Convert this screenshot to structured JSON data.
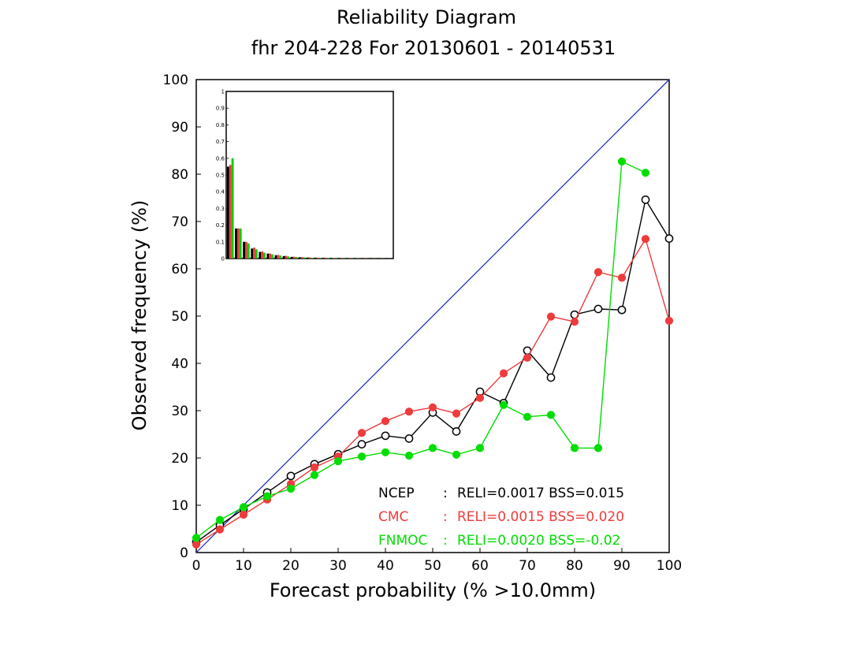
{
  "chart_data": {
    "type": "line",
    "title": "Reliability Diagram",
    "subtitle": "fhr 204-228 For 20130601 - 20140531",
    "xlabel": "Forecast probability (% >10.0mm)",
    "ylabel": "Observed frequency (%)",
    "xlim": [
      0,
      100
    ],
    "ylim": [
      0,
      100
    ],
    "xticks": [
      "0",
      "10",
      "20",
      "30",
      "40",
      "50",
      "60",
      "70",
      "80",
      "90",
      "100"
    ],
    "yticks": [
      "0",
      "10",
      "20",
      "30",
      "40",
      "50",
      "60",
      "70",
      "80",
      "90",
      "100"
    ],
    "grid": false,
    "diagonal_color": "#1f2fb0",
    "x": [
      0,
      5,
      10,
      15,
      20,
      25,
      30,
      35,
      40,
      45,
      50,
      55,
      60,
      65,
      70,
      75,
      80,
      85,
      90,
      95,
      100
    ],
    "series": [
      {
        "name": "NCEP",
        "color": "#000000",
        "marker": "open-circle",
        "values": [
          2.2,
          5.8,
          9.2,
          12.7,
          16.2,
          18.7,
          20.8,
          22.9,
          24.7,
          24.1,
          29.6,
          25.6,
          34.0,
          31.6,
          42.7,
          37.0,
          50.3,
          51.5,
          51.3,
          74.6,
          66.4
        ]
      },
      {
        "name": "CMC",
        "color": "#ee3b3b",
        "marker": "filled-circle",
        "values": [
          1.7,
          4.9,
          8.0,
          11.2,
          14.5,
          18.0,
          20.3,
          25.3,
          27.8,
          29.8,
          30.7,
          29.4,
          32.7,
          37.9,
          41.2,
          49.9,
          48.8,
          59.3,
          58.1,
          66.3,
          49.0
        ]
      },
      {
        "name": "FNMOC",
        "color": "#00dd00",
        "marker": "filled-circle",
        "values": [
          3.1,
          6.9,
          9.6,
          11.9,
          13.5,
          16.4,
          19.3,
          20.3,
          21.2,
          20.5,
          22.1,
          20.7,
          22.1,
          31.2,
          28.7,
          29.1,
          22.1,
          22.1,
          82.7,
          80.3,
          null
        ]
      }
    ],
    "legend": [
      {
        "name": "NCEP",
        "sep": ":",
        "text": "RELI=0.0017 BSS=0.015",
        "color": "#000000"
      },
      {
        "name": "CMC",
        "sep": ":",
        "text": "RELI=0.0015 BSS=0.020",
        "color": "#ee3b3b"
      },
      {
        "name": "FNMOC",
        "sep": ":",
        "text": "RELI=0.0020 BSS=-0.02",
        "color": "#00dd00"
      }
    ],
    "legend_position": "bottom-right",
    "inset": {
      "type": "bar",
      "position": "top-left",
      "ylim": [
        0,
        1
      ],
      "yticks": [
        "0",
        "0.1",
        "0.2",
        "0.3",
        "0.4",
        "0.5",
        "0.6",
        "0.7",
        "0.8",
        "0.9",
        "1"
      ],
      "series": [
        {
          "name": "NCEP",
          "color": "#000000",
          "values": [
            0.55,
            0.18,
            0.1,
            0.06,
            0.04,
            0.03,
            0.02,
            0.015,
            0.01,
            0.008,
            0.006,
            0.005,
            0.004,
            0.003,
            0.003,
            0.002,
            0.002,
            0.002,
            0.001,
            0.001,
            0.001
          ]
        },
        {
          "name": "CMC",
          "color": "#ee3b3b",
          "values": [
            0.56,
            0.18,
            0.1,
            0.065,
            0.042,
            0.03,
            0.022,
            0.016,
            0.011,
            0.009,
            0.007,
            0.005,
            0.004,
            0.003,
            0.003,
            0.002,
            0.002,
            0.002,
            0.001,
            0.001,
            0.001
          ]
        },
        {
          "name": "FNMOC",
          "color": "#00cc00",
          "values": [
            0.6,
            0.18,
            0.09,
            0.055,
            0.035,
            0.025,
            0.018,
            0.013,
            0.009,
            0.007,
            0.005,
            0.004,
            0.003,
            0.003,
            0.002,
            0.002,
            0.001,
            0.001,
            0.001,
            0.001,
            0.0
          ]
        }
      ]
    }
  }
}
